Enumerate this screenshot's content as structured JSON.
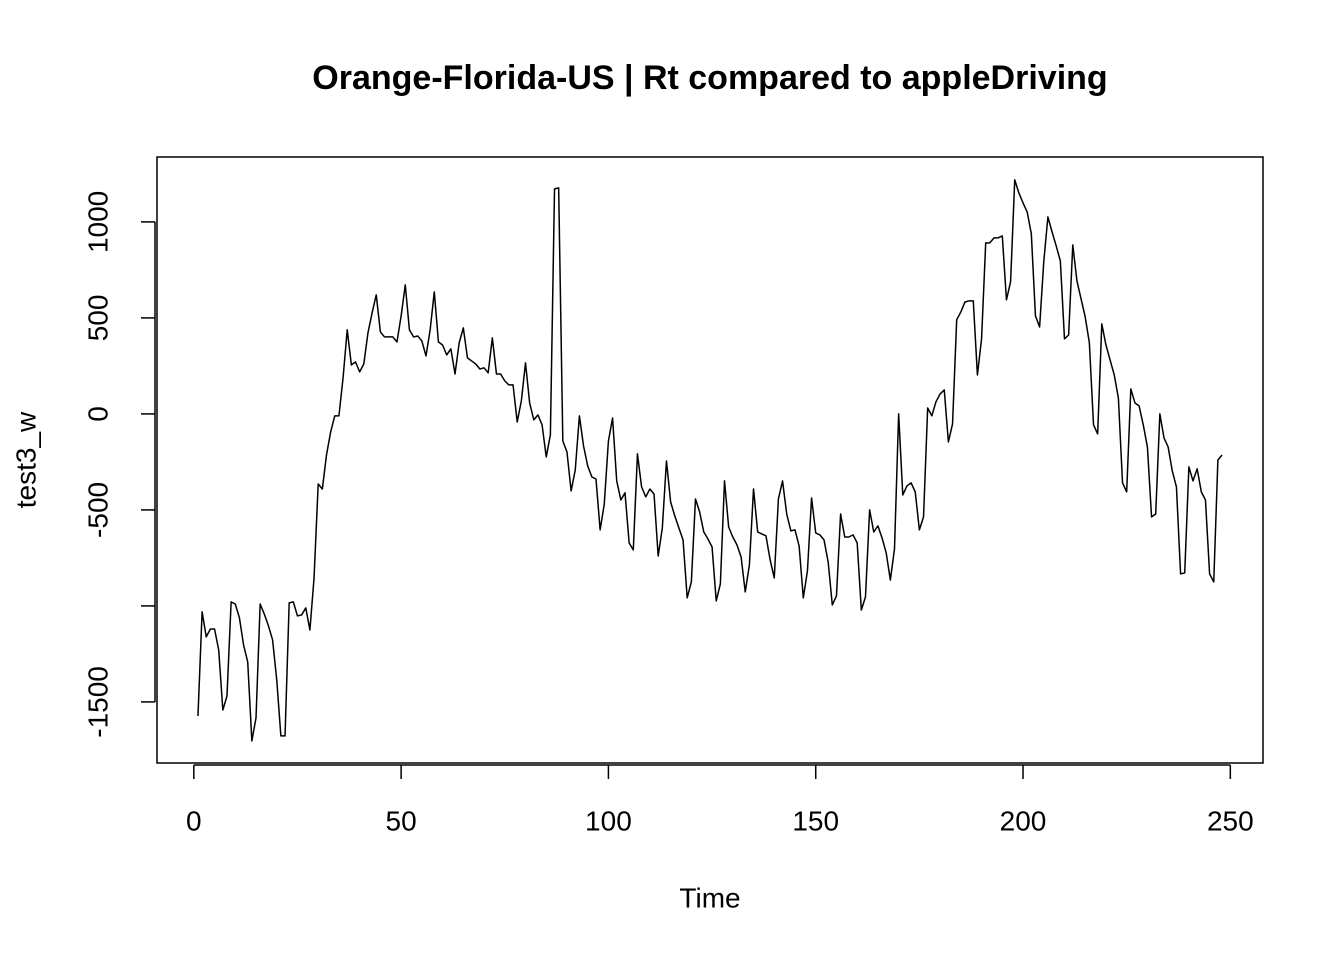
{
  "chart_data": {
    "type": "line",
    "title": "Orange-Florida-US | Rt compared to appleDriving",
    "xlabel": "Time",
    "ylabel": "test3_w",
    "xlim": [
      -8.88,
      257.88
    ],
    "ylim": [
      -1818,
      1338
    ],
    "xticks": [
      0,
      50,
      100,
      150,
      200,
      250
    ],
    "yticks": [
      -1500,
      {
        "value": -1000,
        "label": null
      },
      -500,
      0,
      500,
      1000
    ],
    "x": [
      1,
      2,
      3,
      4,
      5,
      6,
      7,
      8,
      9,
      10,
      11,
      12,
      13,
      14,
      15,
      16,
      17,
      18,
      19,
      20,
      21,
      22,
      23,
      24,
      25,
      26,
      27,
      28,
      29,
      30,
      31,
      32,
      33,
      34,
      35,
      36,
      37,
      38,
      39,
      40,
      41,
      42,
      43,
      44,
      45,
      46,
      47,
      48,
      49,
      50,
      51,
      52,
      53,
      54,
      55,
      56,
      57,
      58,
      59,
      60,
      61,
      62,
      63,
      64,
      65,
      66,
      67,
      68,
      69,
      70,
      71,
      72,
      73,
      74,
      75,
      76,
      77,
      78,
      79,
      80,
      81,
      82,
      83,
      84,
      85,
      86,
      87,
      88,
      89,
      90,
      91,
      92,
      93,
      94,
      95,
      96,
      97,
      98,
      99,
      100,
      101,
      102,
      103,
      104,
      105,
      106,
      107,
      108,
      109,
      110,
      111,
      112,
      113,
      114,
      115,
      116,
      117,
      118,
      119,
      120,
      121,
      122,
      123,
      124,
      125,
      126,
      127,
      128,
      129,
      130,
      131,
      132,
      133,
      134,
      135,
      136,
      137,
      138,
      139,
      140,
      141,
      142,
      143,
      144,
      145,
      146,
      147,
      148,
      149,
      150,
      151,
      152,
      153,
      154,
      155,
      156,
      157,
      158,
      159,
      160,
      161,
      162,
      163,
      164,
      165,
      166,
      167,
      168,
      169,
      170,
      171,
      172,
      173,
      174,
      175,
      176,
      177,
      178,
      179,
      180,
      181,
      182,
      183,
      184,
      185,
      186,
      187,
      188,
      189,
      190,
      191,
      192,
      193,
      194,
      195,
      196,
      197,
      198,
      199,
      200,
      201,
      202,
      203,
      204,
      205,
      206,
      207,
      208,
      209,
      210,
      211,
      212,
      213,
      214,
      215,
      216,
      217,
      218,
      219,
      220,
      221,
      222,
      223,
      224,
      225,
      226,
      227,
      228,
      229,
      230,
      231,
      232,
      233,
      234,
      235,
      236,
      237,
      238,
      239,
      240,
      241,
      242,
      243,
      244,
      245,
      246,
      247,
      248
    ],
    "series": [
      {
        "name": "test3_w",
        "color": "#000000",
        "values": [
          -1573,
          -1031,
          -1161,
          -1120,
          -1120,
          -1229,
          -1542,
          -1469,
          -979,
          -990,
          -1062,
          -1203,
          -1292,
          -1703,
          -1583,
          -990,
          -1042,
          -1104,
          -1177,
          -1385,
          -1677,
          -1677,
          -984,
          -979,
          -1052,
          -1047,
          -1010,
          -1125,
          -854,
          -365,
          -391,
          -214,
          -94,
          -10,
          -10,
          188,
          438,
          255,
          271,
          219,
          260,
          422,
          526,
          620,
          427,
          401,
          401,
          401,
          375,
          510,
          672,
          438,
          401,
          406,
          380,
          302,
          438,
          635,
          375,
          359,
          307,
          339,
          208,
          370,
          448,
          292,
          276,
          260,
          234,
          240,
          214,
          396,
          208,
          208,
          172,
          151,
          151,
          -42,
          68,
          266,
          57,
          -31,
          -5,
          -57,
          -224,
          -109,
          1172,
          1177,
          -141,
          -198,
          -401,
          -292,
          -10,
          -167,
          -271,
          -328,
          -339,
          -604,
          -469,
          -141,
          -21,
          -349,
          -448,
          -411,
          -672,
          -708,
          -208,
          -380,
          -432,
          -391,
          -417,
          -740,
          -594,
          -245,
          -458,
          -531,
          -594,
          -656,
          -958,
          -875,
          -443,
          -510,
          -615,
          -651,
          -693,
          -974,
          -885,
          -349,
          -589,
          -641,
          -682,
          -745,
          -927,
          -786,
          -391,
          -615,
          -625,
          -635,
          -760,
          -854,
          -443,
          -349,
          -521,
          -609,
          -604,
          -688,
          -958,
          -818,
          -438,
          -620,
          -630,
          -656,
          -771,
          -995,
          -948,
          -521,
          -641,
          -641,
          -630,
          -672,
          -1021,
          -953,
          -500,
          -615,
          -583,
          -646,
          -724,
          -865,
          -703,
          0,
          -422,
          -375,
          -359,
          -406,
          -604,
          -536,
          31,
          -10,
          63,
          104,
          125,
          -146,
          -52,
          490,
          531,
          583,
          589,
          589,
          203,
          391,
          891,
          891,
          917,
          917,
          927,
          594,
          688,
          1219,
          1151,
          1099,
          1052,
          938,
          510,
          453,
          792,
          1026,
          948,
          875,
          797,
          391,
          411,
          880,
          693,
          599,
          505,
          370,
          -57,
          -104,
          469,
          359,
          281,
          203,
          83,
          -359,
          -406,
          130,
          57,
          42,
          -57,
          -172,
          -536,
          -521,
          0,
          -125,
          -172,
          -297,
          -380,
          -833,
          -828,
          -276,
          -349,
          -286,
          -406,
          -448,
          -833,
          -875,
          -240,
          -214
        ]
      }
    ]
  }
}
